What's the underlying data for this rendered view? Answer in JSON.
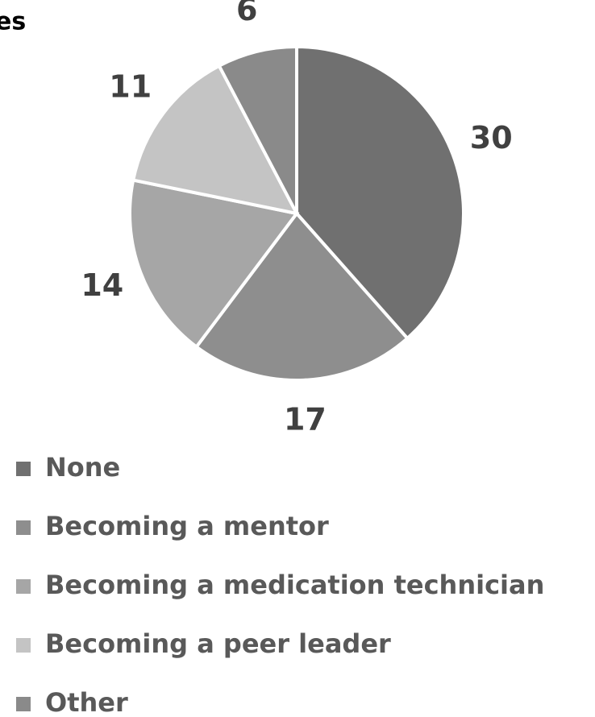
{
  "chart_data": {
    "type": "pie",
    "title": "es",
    "categories": [
      "None",
      "Becoming a mentor",
      "Becoming a medication technician",
      "Becoming a peer leader",
      "Other"
    ],
    "values": [
      30,
      17,
      14,
      11,
      6
    ],
    "colors": [
      "#707070",
      "#8e8e8e",
      "#a6a6a6",
      "#c4c4c4",
      "#8a8a8a"
    ],
    "legend": "bottom"
  }
}
